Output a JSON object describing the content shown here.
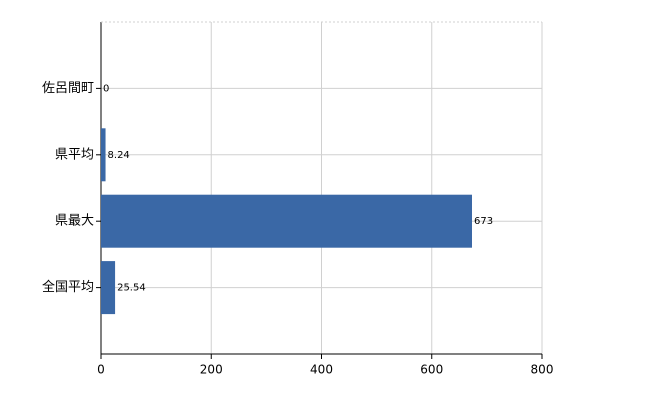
{
  "chart_data": {
    "type": "barh",
    "categories": [
      "佐呂間町",
      "県平均",
      "県最大",
      "全国平均"
    ],
    "values": [
      0,
      8.24,
      673,
      25.54
    ],
    "color": "#3a68a6",
    "xlim": [
      0,
      800
    ],
    "xticks": [
      0,
      200,
      400,
      600,
      800
    ],
    "grid": true
  }
}
